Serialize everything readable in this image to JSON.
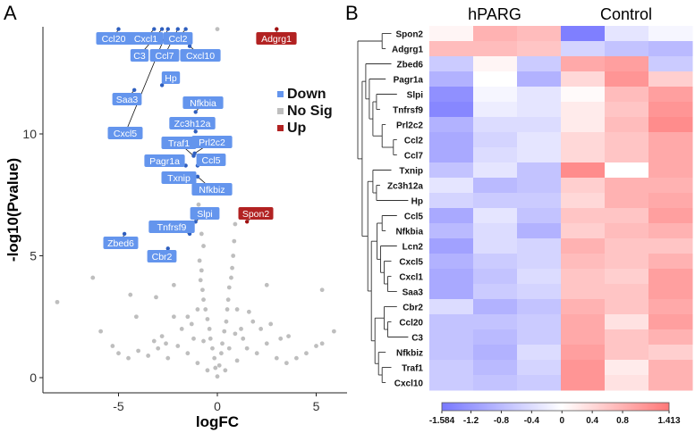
{
  "chart_data": [
    {
      "type": "scatter",
      "panel_label": "A",
      "title": "",
      "xlabel": "logFC",
      "ylabel": "-log10(Pvalue)",
      "xlim": [
        -8.7,
        6.5
      ],
      "ylim": [
        -0.6,
        14.4
      ],
      "xticks": [
        {
          "value": -5,
          "label": "-5"
        },
        {
          "value": 0,
          "label": "0"
        },
        {
          "value": 5,
          "label": "5"
        }
      ],
      "yticks": [
        {
          "value": 0,
          "label": "0"
        },
        {
          "value": 5,
          "label": "5"
        },
        {
          "value": 10,
          "label": "10"
        }
      ],
      "grid": false,
      "legend": {
        "placement": "right",
        "entries": [
          {
            "label": "Down",
            "color": "#6495ed"
          },
          {
            "label": "No Sig",
            "color": "#bebebe"
          },
          {
            "label": "Up",
            "color": "#b22222"
          }
        ]
      },
      "labeled_points": [
        {
          "gene": "Ccl20",
          "x": -5.0,
          "y": 14.3,
          "group": "Down"
        },
        {
          "gene": "Cxcl1",
          "x": -3.2,
          "y": 14.3,
          "group": "Down"
        },
        {
          "gene": "C3",
          "x": -2.8,
          "y": 14.3,
          "group": "Down"
        },
        {
          "gene": "Cxcl5",
          "x": -2.5,
          "y": 14.3,
          "group": "Down"
        },
        {
          "gene": "Ccl7",
          "x": -2.0,
          "y": 14.3,
          "group": "Down"
        },
        {
          "gene": "Ccl2",
          "x": -1.6,
          "y": 14.3,
          "group": "Down"
        },
        {
          "gene": "Cxcl10",
          "x": -1.4,
          "y": 13.6,
          "group": "Down"
        },
        {
          "gene": "Hp",
          "x": -2.8,
          "y": 12.0,
          "group": "Down"
        },
        {
          "gene": "Saa3",
          "x": -4.2,
          "y": 11.8,
          "group": "Down"
        },
        {
          "gene": "Nfkbia",
          "x": -1.1,
          "y": 10.9,
          "group": "Down"
        },
        {
          "gene": "Zc3h12a",
          "x": -1.1,
          "y": 10.1,
          "group": "Down"
        },
        {
          "gene": "Traf1",
          "x": -1.2,
          "y": 9.1,
          "group": "Down"
        },
        {
          "gene": "Prl2c2",
          "x": -1.15,
          "y": 9.2,
          "group": "Down"
        },
        {
          "gene": "Pagr1a",
          "x": -1.6,
          "y": 8.7,
          "group": "Down"
        },
        {
          "gene": "Ccl5",
          "x": -1.0,
          "y": 8.7,
          "group": "Down"
        },
        {
          "gene": "Txnip",
          "x": -1.2,
          "y": 8.3,
          "group": "Down"
        },
        {
          "gene": "Nfkbiz",
          "x": -1.0,
          "y": 8.25,
          "group": "Down"
        },
        {
          "gene": "Slpi",
          "x": -1.1,
          "y": 6.4,
          "group": "Down"
        },
        {
          "gene": "Tnfrsf9",
          "x": -1.4,
          "y": 5.9,
          "group": "Down"
        },
        {
          "gene": "Zbed6",
          "x": -4.7,
          "y": 5.9,
          "group": "Down"
        },
        {
          "gene": "Cbr2",
          "x": -2.5,
          "y": 5.3,
          "group": "Down"
        },
        {
          "gene": "Spon2",
          "x": 1.5,
          "y": 6.4,
          "group": "Up"
        },
        {
          "gene": "Adgrg1",
          "x": 3.0,
          "y": 14.3,
          "group": "Up"
        }
      ],
      "nosig_points": [
        [
          -8.1,
          3.1
        ],
        [
          -6.3,
          4.1
        ],
        [
          -4.4,
          3.4
        ],
        [
          -4.1,
          2.5
        ],
        [
          -5.9,
          1.9
        ],
        [
          -2.2,
          3.8
        ],
        [
          -3.1,
          3.3
        ],
        [
          2.5,
          3.8
        ],
        [
          5.3,
          3.6
        ],
        [
          5.9,
          1.9
        ],
        [
          0.9,
          6.3
        ],
        [
          0.85,
          5.6
        ],
        [
          -0.8,
          5.9
        ],
        [
          -0.7,
          5.4
        ],
        [
          0.0,
          14.3
        ],
        [
          -0.95,
          7.1
        ],
        [
          -0.9,
          4.8
        ],
        [
          -0.8,
          4.4
        ],
        [
          -0.85,
          4.0
        ],
        [
          -0.75,
          3.6
        ],
        [
          -0.7,
          3.2
        ],
        [
          -0.6,
          2.8
        ],
        [
          -0.5,
          2.4
        ],
        [
          -0.4,
          2.0
        ],
        [
          -0.35,
          1.6
        ],
        [
          -0.25,
          1.2
        ],
        [
          -0.15,
          0.8
        ],
        [
          -0.1,
          0.4
        ],
        [
          0.8,
          5.0
        ],
        [
          0.75,
          4.5
        ],
        [
          0.7,
          4.1
        ],
        [
          0.6,
          3.7
        ],
        [
          0.55,
          3.2
        ],
        [
          0.5,
          2.8
        ],
        [
          0.45,
          2.3
        ],
        [
          0.35,
          1.9
        ],
        [
          0.25,
          1.4
        ],
        [
          0.2,
          1.0
        ],
        [
          0.1,
          0.5
        ],
        [
          -1.5,
          1.0
        ],
        [
          -2.0,
          1.3
        ],
        [
          -2.5,
          0.8
        ],
        [
          -3.0,
          1.2
        ],
        [
          -3.5,
          0.9
        ],
        [
          -4.0,
          1.1
        ],
        [
          -4.5,
          0.8
        ],
        [
          -5.0,
          1.0
        ],
        [
          -5.3,
          1.3
        ],
        [
          -1.0,
          0.6
        ],
        [
          -1.2,
          1.6
        ],
        [
          -1.8,
          2.0
        ],
        [
          -2.2,
          2.5
        ],
        [
          -1.5,
          2.5
        ],
        [
          -1.0,
          2.8
        ],
        [
          -0.7,
          1.5
        ],
        [
          -2.8,
          1.7
        ],
        [
          -3.2,
          1.5
        ],
        [
          -0.5,
          0.3
        ],
        [
          -1.3,
          2.2
        ],
        [
          -2.6,
          1.4
        ],
        [
          1.0,
          0.7
        ],
        [
          1.5,
          1.2
        ],
        [
          2.0,
          1.0
        ],
        [
          2.5,
          1.4
        ],
        [
          3.0,
          0.8
        ],
        [
          3.5,
          0.6
        ],
        [
          4.0,
          0.8
        ],
        [
          4.5,
          1.0
        ],
        [
          5.0,
          1.3
        ],
        [
          5.3,
          1.4
        ],
        [
          1.2,
          2.0
        ],
        [
          1.8,
          2.3
        ],
        [
          2.2,
          2.0
        ],
        [
          1.0,
          2.8
        ],
        [
          1.6,
          2.7
        ],
        [
          3.2,
          1.6
        ],
        [
          3.6,
          1.7
        ],
        [
          2.7,
          2.2
        ],
        [
          0.6,
          1.2
        ],
        [
          0.4,
          0.3
        ],
        [
          0.0,
          0.05
        ],
        [
          1.3,
          1.6
        ],
        [
          0.9,
          1.8
        ]
      ]
    },
    {
      "type": "heatmap",
      "panel_label": "B",
      "groups": [
        {
          "label": "hPARG",
          "columns": 3
        },
        {
          "label": "Control",
          "columns": 3
        }
      ],
      "rows": [
        "Spon2",
        "Adgrg1",
        "Zbed6",
        "Pagr1a",
        "Slpi",
        "Tnfrsf9",
        "Prl2c2",
        "Ccl2",
        "Ccl7",
        "Txnip",
        "Zc3h12a",
        "Hp",
        "Ccl5",
        "Nfkbia",
        "Lcn2",
        "Cxcl5",
        "Cxcl1",
        "Saa3",
        "Cbr2",
        "Ccl20",
        "C3",
        "Nfkbiz",
        "Traf1",
        "Cxcl10"
      ],
      "values": [
        [
          0.1,
          0.8,
          0.7,
          -1.5,
          -0.3,
          -0.1
        ],
        [
          0.7,
          0.7,
          0.6,
          -0.5,
          -0.7,
          -0.8
        ],
        [
          -0.6,
          0.1,
          -0.6,
          0.9,
          1.0,
          -0.6
        ],
        [
          -0.9,
          0.0,
          -0.9,
          0.4,
          1.1,
          0.5
        ],
        [
          -1.3,
          -0.1,
          -0.3,
          0.05,
          0.7,
          1.0
        ],
        [
          -1.4,
          -0.2,
          -0.3,
          0.2,
          0.6,
          1.1
        ],
        [
          -0.9,
          -0.4,
          -0.4,
          0.2,
          0.7,
          1.2
        ],
        [
          -1.0,
          -0.5,
          -0.3,
          0.4,
          0.6,
          0.9
        ],
        [
          -1.0,
          -0.4,
          -0.3,
          0.4,
          0.6,
          0.9
        ],
        [
          -0.7,
          -0.3,
          -0.7,
          1.2,
          0.0,
          0.9
        ],
        [
          -0.3,
          -0.8,
          -0.7,
          0.5,
          0.8,
          0.8
        ],
        [
          -0.5,
          -0.6,
          -0.6,
          0.4,
          0.8,
          0.9
        ],
        [
          -1.0,
          -0.3,
          -0.7,
          0.6,
          0.6,
          1.0
        ],
        [
          -0.8,
          -0.4,
          -0.9,
          0.5,
          0.7,
          0.8
        ],
        [
          -1.1,
          -0.4,
          -0.5,
          0.8,
          0.6,
          0.6
        ],
        [
          -0.9,
          -0.6,
          -0.5,
          0.7,
          0.6,
          0.8
        ],
        [
          -1.0,
          -0.7,
          -0.4,
          0.6,
          0.5,
          1.0
        ],
        [
          -1.0,
          -0.6,
          -0.5,
          0.6,
          0.6,
          1.0
        ],
        [
          -0.4,
          -0.9,
          -0.7,
          0.8,
          0.6,
          0.9
        ],
        [
          -0.7,
          -0.7,
          -0.6,
          0.9,
          0.3,
          1.0
        ],
        [
          -0.7,
          -0.8,
          -0.6,
          0.9,
          0.6,
          0.8
        ],
        [
          -0.7,
          -0.9,
          -0.4,
          1.0,
          0.6,
          0.5
        ],
        [
          -0.6,
          -0.8,
          -0.5,
          1.1,
          0.2,
          0.8
        ],
        [
          -0.6,
          -0.7,
          -0.6,
          1.1,
          0.3,
          0.8
        ]
      ],
      "color_scale": {
        "min": -1.584,
        "max": 1.413,
        "low_color": "#7878ff",
        "mid_color": "#ffffff",
        "high_color": "#ff7878"
      },
      "colorbar_ticks": [
        "-1.584",
        "-1.2",
        "-0.8",
        "-0.4",
        "0",
        "0.4",
        "0.8",
        "1.413"
      ],
      "colorbar_tick_values": [
        -1.584,
        -1.2,
        -0.8,
        -0.4,
        0,
        0.4,
        0.8,
        1.413
      ]
    }
  ]
}
